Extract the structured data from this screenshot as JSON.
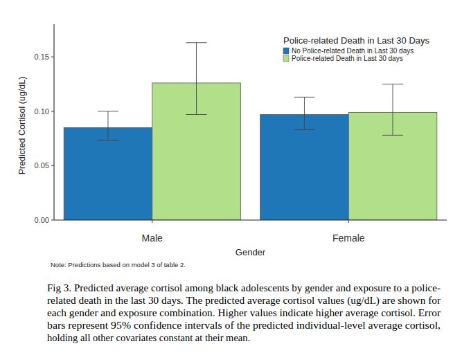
{
  "chart_data": {
    "type": "bar",
    "x_label": "Gender",
    "y_label": "Predicted Cortisol (ug/dL)",
    "categories": [
      "Male",
      "Female"
    ],
    "legend_title": "Police-related Death in Last 30 Days",
    "legend": "top-right",
    "grid": false,
    "series": [
      {
        "name": "No Police-related Death in Last 30 days",
        "color": "#1f77b8",
        "values": [
          0.085,
          0.097
        ],
        "ci_low": [
          0.073,
          0.083
        ],
        "ci_high": [
          0.1,
          0.113
        ]
      },
      {
        "name": "Police-related Death in Last 30 days",
        "color": "#b2df8a",
        "values": [
          0.126,
          0.099
        ],
        "ci_low": [
          0.097,
          0.078
        ],
        "ci_high": [
          0.163,
          0.125
        ]
      }
    ],
    "ylim": [
      0,
      0.18
    ],
    "yticks": [
      {
        "value": 0,
        "label": "0.00"
      },
      {
        "value": 0.05,
        "label": "0.05"
      },
      {
        "value": 0.1,
        "label": "0.10"
      },
      {
        "value": 0.15,
        "label": "0.15"
      }
    ],
    "annotations": [
      "Note: Predictions based on model 3 of table 2.",
      "Fig 3. Predicted average cortisol among black adolescents by gender and exposure to a police-",
      "related death in the last 30 days. The predicted average cortisol values (ug/dL) are shown for",
      "each gender and exposure combination. Higher values indicate higher average cortisol. Error",
      "bars represent 95% confidence intervals of the predicted individual-level average cortisol,",
      "holding all other covariates constant at their mean."
    ]
  }
}
